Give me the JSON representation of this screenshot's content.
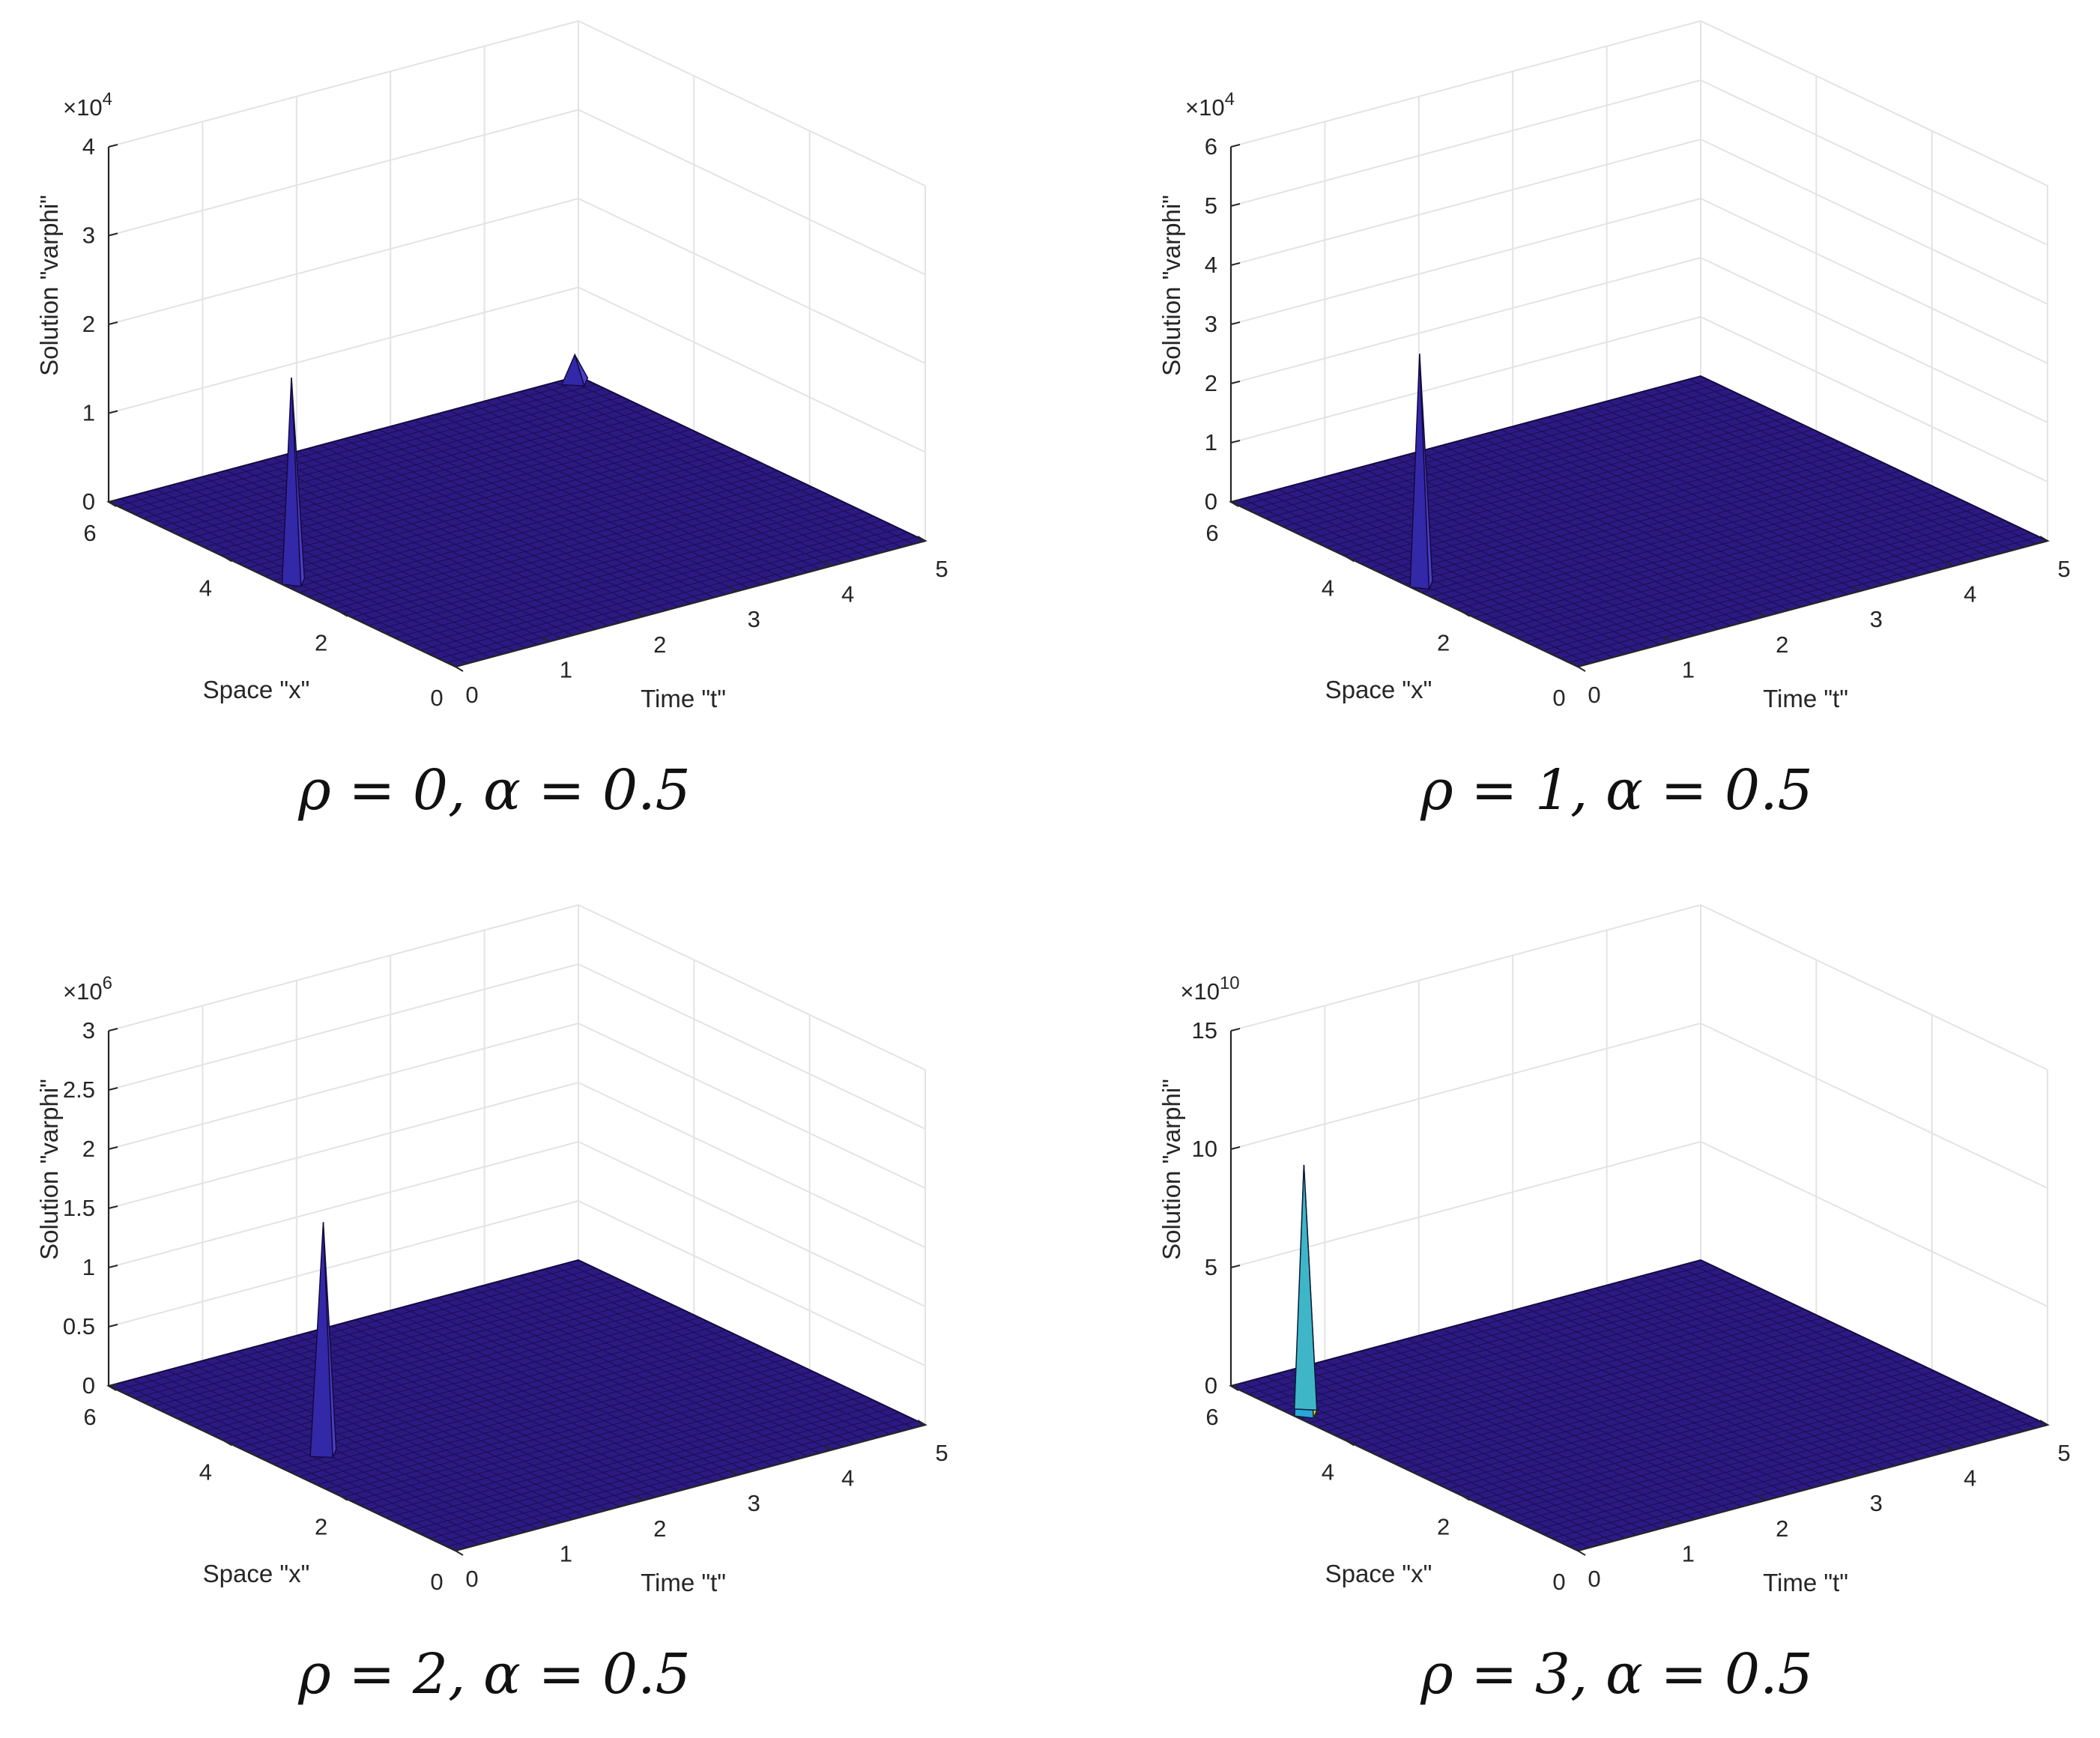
{
  "chart_data": [
    {
      "type": "surface",
      "caption": "ρ = 0, α = 0.5",
      "xlabel": "Time \"t\"",
      "ylabel": "Space \"x\"",
      "zlabel": "Solution \"varphi\"",
      "zexponent": "4",
      "xlim": [
        0,
        5
      ],
      "ylim": [
        0,
        6
      ],
      "zlim": [
        0,
        4
      ],
      "xticks": [
        "0",
        "1",
        "2",
        "3",
        "4",
        "5"
      ],
      "yticks": [
        "0",
        "2",
        "4",
        "6"
      ],
      "zticks": [
        "0",
        "1",
        "2",
        "3",
        "4"
      ],
      "peaks": [
        {
          "t": 0.1,
          "x": 3.0,
          "z": 2.3
        },
        {
          "t": 4.9,
          "x": 5.9,
          "z": 0.3
        }
      ],
      "colors": {
        "base": "#2c1a82",
        "peak": "#4a3fc8"
      }
    },
    {
      "type": "surface",
      "caption": "ρ = 1, α = 0.5",
      "xlabel": "Time \"t\"",
      "ylabel": "Space \"x\"",
      "zlabel": "Solution \"varphi\"",
      "zexponent": "4",
      "xlim": [
        0,
        5
      ],
      "ylim": [
        0,
        6
      ],
      "zlim": [
        0,
        6
      ],
      "xticks": [
        "0",
        "1",
        "2",
        "3",
        "4",
        "5"
      ],
      "yticks": [
        "0",
        "2",
        "4",
        "6"
      ],
      "zticks": [
        "0",
        "1",
        "2",
        "3",
        "4",
        "5",
        "6"
      ],
      "peaks": [
        {
          "t": 0.1,
          "x": 2.9,
          "z": 3.9
        }
      ],
      "colors": {
        "base": "#2c1a82",
        "peak": "#4a3fc8"
      }
    },
    {
      "type": "surface",
      "caption": "ρ = 2, α = 0.5",
      "xlabel": "Time \"t\"",
      "ylabel": "Space \"x\"",
      "zlabel": "Solution \"varphi\"",
      "zexponent": "6",
      "xlim": [
        0,
        5
      ],
      "ylim": [
        0,
        6
      ],
      "zlim": [
        0,
        3
      ],
      "xticks": [
        "0",
        "1",
        "2",
        "3",
        "4",
        "5"
      ],
      "yticks": [
        "0",
        "2",
        "4",
        "6"
      ],
      "zticks": [
        "0",
        "0.5",
        "1",
        "1.5",
        "2",
        "2.5",
        "3"
      ],
      "peaks": [
        {
          "t": 0.5,
          "x": 3.1,
          "z": 1.95
        }
      ],
      "colors": {
        "base": "#2c1a82",
        "peak": "#4a3fc8"
      }
    },
    {
      "type": "surface",
      "caption": "ρ = 3, α = 0.5",
      "xlabel": "Time \"t\"",
      "ylabel": "Space \"x\"",
      "zlabel": "Solution \"varphi\"",
      "zexponent": "10",
      "xlim": [
        0,
        5
      ],
      "ylim": [
        0,
        6
      ],
      "zlim": [
        0,
        15
      ],
      "xticks": [
        "0",
        "1",
        "2",
        "3",
        "4",
        "5"
      ],
      "yticks": [
        "0",
        "2",
        "4",
        "6"
      ],
      "zticks": [
        "0",
        "5",
        "10",
        "15"
      ],
      "peaks": [
        {
          "t": 0.1,
          "x": 4.9,
          "z": 10.5
        }
      ],
      "colors": {
        "base": "#2c1a82",
        "peak": "#f5e61e",
        "edge": "#2aa7d8"
      }
    }
  ]
}
